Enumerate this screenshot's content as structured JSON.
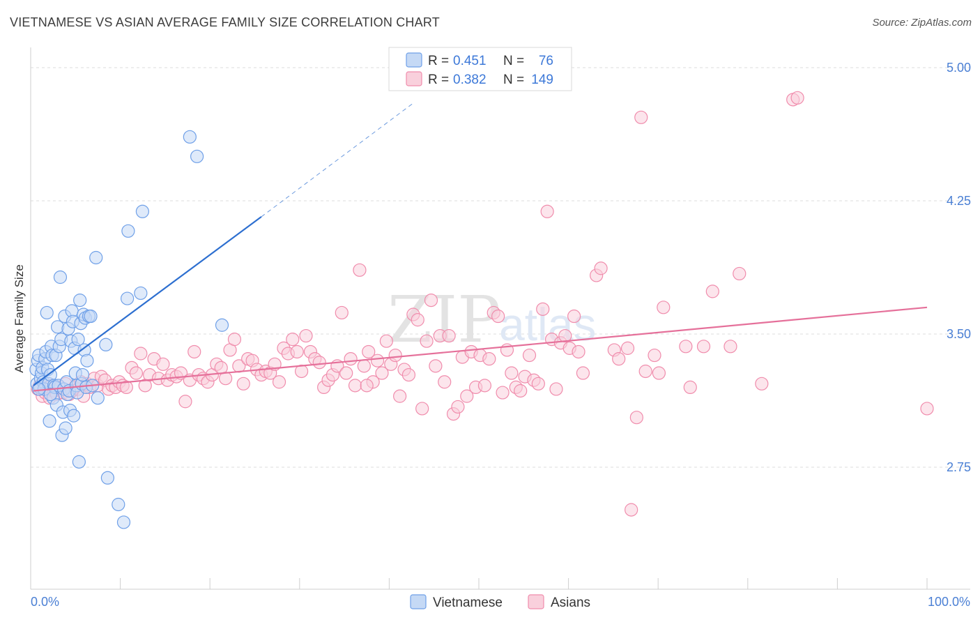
{
  "title": "VIETNAMESE VS ASIAN AVERAGE FAMILY SIZE CORRELATION CHART",
  "source": "Source: ZipAtlas.com",
  "watermark": {
    "zip": "ZIP",
    "atlas": "atlas"
  },
  "colors": {
    "vietnamese": "#6fa0e8",
    "vietnamese_fill": "#c5d9f5",
    "vietnamese_line": "#2d6fd0",
    "asians": "#f08cac",
    "asians_fill": "#f9d0dc",
    "asians_line": "#e5709a",
    "grid": "#dcdcdc",
    "tick_label": "#4a7fd4"
  },
  "legend": {
    "rows": [
      {
        "r_label": "R =",
        "r_value": "0.451",
        "n_label": "N =",
        "n_value": "76"
      },
      {
        "r_label": "R =",
        "r_value": "0.382",
        "n_label": "N =",
        "n_value": "149"
      }
    ]
  },
  "bottom_legend": {
    "vietnamese": "Vietnamese",
    "asians": "Asians"
  },
  "chart_data": {
    "type": "scatter",
    "title": "VIETNAMESE VS ASIAN AVERAGE FAMILY SIZE CORRELATION CHART",
    "xlabel": "",
    "ylabel": "Average Family Size",
    "xlim": [
      0,
      100
    ],
    "ylim": [
      2.0,
      5.1
    ],
    "x_tick_labels": [
      "0.0%",
      "100.0%"
    ],
    "y_ticks": [
      2.75,
      3.5,
      4.25,
      5.0
    ],
    "y_tick_labels": [
      "2.75",
      "3.50",
      "4.25",
      "5.00"
    ],
    "series": [
      {
        "name": "Vietnamese",
        "R": 0.451,
        "N": 76,
        "trend": {
          "x0": 0,
          "y0": 3.21,
          "x1": 25.5,
          "y1": 4.16,
          "dash_to_x": 42.5,
          "dash_to_y": 4.8
        },
        "points": [
          [
            0.3,
            3.3
          ],
          [
            0.4,
            3.22
          ],
          [
            0.5,
            3.35
          ],
          [
            0.6,
            3.38
          ],
          [
            0.7,
            3.2
          ],
          [
            0.8,
            3.25
          ],
          [
            0.9,
            3.28
          ],
          [
            1.0,
            3.31
          ],
          [
            1.1,
            3.23
          ],
          [
            1.2,
            3.19
          ],
          [
            1.3,
            3.36
          ],
          [
            1.4,
            3.4
          ],
          [
            1.5,
            3.62
          ],
          [
            1.6,
            3.3
          ],
          [
            1.7,
            3.22
          ],
          [
            1.8,
            3.01
          ],
          [
            1.9,
            3.27
          ],
          [
            2.0,
            3.43
          ],
          [
            2.1,
            3.38
          ],
          [
            2.2,
            3.14
          ],
          [
            2.3,
            3.21
          ],
          [
            2.4,
            3.2
          ],
          [
            2.5,
            3.38
          ],
          [
            2.6,
            3.1
          ],
          [
            2.7,
            3.54
          ],
          [
            2.8,
            3.21
          ],
          [
            2.9,
            3.43
          ],
          [
            3.0,
            3.82
          ],
          [
            3.1,
            3.47
          ],
          [
            3.2,
            2.93
          ],
          [
            3.3,
            3.06
          ],
          [
            3.4,
            3.19
          ],
          [
            3.5,
            3.6
          ],
          [
            3.6,
            2.97
          ],
          [
            3.7,
            3.23
          ],
          [
            3.8,
            3.16
          ],
          [
            3.9,
            3.53
          ],
          [
            4.0,
            3.18
          ],
          [
            4.1,
            3.07
          ],
          [
            4.2,
            3.46
          ],
          [
            4.3,
            3.63
          ],
          [
            4.4,
            3.57
          ],
          [
            4.5,
            3.04
          ],
          [
            4.6,
            3.42
          ],
          [
            4.7,
            3.28
          ],
          [
            4.8,
            3.21
          ],
          [
            4.9,
            3.17
          ],
          [
            5.0,
            3.47
          ],
          [
            5.1,
            2.78
          ],
          [
            5.2,
            3.69
          ],
          [
            5.3,
            3.56
          ],
          [
            5.4,
            3.22
          ],
          [
            5.5,
            3.27
          ],
          [
            5.6,
            3.61
          ],
          [
            5.7,
            3.41
          ],
          [
            5.8,
            3.59
          ],
          [
            5.9,
            3.2
          ],
          [
            6.0,
            3.35
          ],
          [
            6.2,
            3.6
          ],
          [
            6.4,
            3.6
          ],
          [
            6.6,
            3.21
          ],
          [
            7.0,
            3.93
          ],
          [
            7.2,
            3.14
          ],
          [
            8.1,
            3.44
          ],
          [
            8.3,
            2.69
          ],
          [
            9.5,
            2.54
          ],
          [
            10.1,
            2.44
          ],
          [
            10.5,
            3.7
          ],
          [
            10.6,
            4.08
          ],
          [
            12.0,
            3.73
          ],
          [
            12.2,
            4.19
          ],
          [
            17.5,
            4.61
          ],
          [
            18.3,
            4.5
          ],
          [
            21.1,
            3.55
          ],
          [
            0.6,
            3.19
          ],
          [
            1.9,
            3.16
          ]
        ]
      },
      {
        "name": "Asians",
        "R": 0.382,
        "N": 149,
        "trend": {
          "x0": 0,
          "y0": 3.18,
          "x1": 100,
          "y1": 3.65
        },
        "points": [
          [
            0.5,
            3.19
          ],
          [
            0.7,
            3.21
          ],
          [
            1.0,
            3.15
          ],
          [
            1.3,
            3.17
          ],
          [
            1.5,
            3.2
          ],
          [
            1.8,
            3.14
          ],
          [
            2.0,
            3.21
          ],
          [
            2.3,
            3.18
          ],
          [
            2.6,
            3.16
          ],
          [
            3.0,
            3.2
          ],
          [
            3.3,
            3.17
          ],
          [
            3.6,
            3.22
          ],
          [
            4.0,
            3.16
          ],
          [
            4.3,
            3.18
          ],
          [
            4.6,
            3.2
          ],
          [
            5.0,
            3.19
          ],
          [
            5.3,
            3.23
          ],
          [
            5.6,
            3.15
          ],
          [
            6.0,
            3.22
          ],
          [
            6.3,
            3.2
          ],
          [
            6.8,
            3.25
          ],
          [
            7.2,
            3.21
          ],
          [
            7.6,
            3.26
          ],
          [
            8.0,
            3.24
          ],
          [
            8.4,
            3.19
          ],
          [
            8.8,
            3.21
          ],
          [
            9.2,
            3.2
          ],
          [
            9.6,
            3.23
          ],
          [
            10.0,
            3.21
          ],
          [
            10.4,
            3.2
          ],
          [
            11.0,
            3.31
          ],
          [
            11.5,
            3.28
          ],
          [
            12.0,
            3.39
          ],
          [
            12.5,
            3.21
          ],
          [
            13.0,
            3.27
          ],
          [
            13.5,
            3.36
          ],
          [
            14.0,
            3.25
          ],
          [
            14.5,
            3.33
          ],
          [
            15.0,
            3.24
          ],
          [
            15.5,
            3.27
          ],
          [
            16.0,
            3.26
          ],
          [
            16.5,
            3.28
          ],
          [
            17.0,
            3.12
          ],
          [
            17.5,
            3.24
          ],
          [
            18.0,
            3.4
          ],
          [
            18.5,
            3.27
          ],
          [
            19.0,
            3.25
          ],
          [
            19.5,
            3.23
          ],
          [
            20.0,
            3.27
          ],
          [
            20.5,
            3.33
          ],
          [
            21.0,
            3.31
          ],
          [
            21.5,
            3.25
          ],
          [
            22.0,
            3.41
          ],
          [
            22.5,
            3.47
          ],
          [
            23.0,
            3.32
          ],
          [
            23.5,
            3.22
          ],
          [
            24.0,
            3.36
          ],
          [
            24.5,
            3.35
          ],
          [
            25.0,
            3.3
          ],
          [
            25.5,
            3.27
          ],
          [
            26.0,
            3.29
          ],
          [
            26.5,
            3.28
          ],
          [
            27.0,
            3.33
          ],
          [
            27.5,
            3.23
          ],
          [
            28.0,
            3.42
          ],
          [
            28.5,
            3.39
          ],
          [
            29.0,
            3.47
          ],
          [
            29.5,
            3.4
          ],
          [
            30.0,
            3.29
          ],
          [
            30.5,
            3.49
          ],
          [
            31.0,
            3.4
          ],
          [
            31.5,
            3.36
          ],
          [
            32.0,
            3.34
          ],
          [
            32.5,
            3.2
          ],
          [
            33.0,
            3.24
          ],
          [
            33.5,
            3.27
          ],
          [
            34.0,
            3.32
          ],
          [
            34.5,
            3.62
          ],
          [
            35.0,
            3.28
          ],
          [
            35.5,
            3.36
          ],
          [
            36.0,
            3.21
          ],
          [
            36.5,
            3.86
          ],
          [
            37.0,
            3.32
          ],
          [
            37.5,
            3.4
          ],
          [
            38.0,
            3.23
          ],
          [
            38.5,
            3.35
          ],
          [
            39.0,
            3.28
          ],
          [
            39.5,
            3.46
          ],
          [
            40.0,
            3.33
          ],
          [
            40.5,
            3.38
          ],
          [
            41.0,
            3.15
          ],
          [
            41.5,
            3.3
          ],
          [
            42.0,
            3.27
          ],
          [
            42.5,
            3.61
          ],
          [
            43.0,
            3.58
          ],
          [
            43.5,
            3.08
          ],
          [
            44.0,
            3.46
          ],
          [
            44.5,
            3.69
          ],
          [
            45.0,
            3.32
          ],
          [
            45.5,
            3.49
          ],
          [
            46.0,
            3.23
          ],
          [
            46.5,
            3.49
          ],
          [
            47.0,
            3.05
          ],
          [
            47.5,
            3.09
          ],
          [
            48.0,
            3.37
          ],
          [
            48.5,
            3.15
          ],
          [
            49.0,
            3.4
          ],
          [
            49.5,
            3.2
          ],
          [
            50.0,
            3.38
          ],
          [
            50.5,
            3.21
          ],
          [
            51.0,
            3.36
          ],
          [
            51.5,
            3.62
          ],
          [
            52.0,
            3.6
          ],
          [
            52.5,
            3.17
          ],
          [
            53.0,
            3.41
          ],
          [
            53.5,
            3.28
          ],
          [
            54.0,
            3.2
          ],
          [
            54.5,
            3.18
          ],
          [
            55.0,
            3.26
          ],
          [
            55.5,
            3.38
          ],
          [
            56.0,
            3.24
          ],
          [
            56.5,
            3.22
          ],
          [
            57.0,
            3.64
          ],
          [
            57.5,
            4.19
          ],
          [
            58.0,
            3.47
          ],
          [
            58.5,
            3.19
          ],
          [
            59.0,
            3.45
          ],
          [
            59.5,
            3.49
          ],
          [
            60.0,
            3.42
          ],
          [
            60.5,
            3.6
          ],
          [
            61.0,
            3.4
          ],
          [
            61.5,
            3.28
          ],
          [
            63.0,
            3.83
          ],
          [
            63.5,
            3.87
          ],
          [
            65.0,
            3.41
          ],
          [
            65.5,
            3.36
          ],
          [
            66.5,
            3.42
          ],
          [
            67.5,
            3.03
          ],
          [
            68.0,
            4.72
          ],
          [
            68.5,
            3.29
          ],
          [
            69.5,
            3.38
          ],
          [
            70.0,
            3.28
          ],
          [
            70.5,
            3.65
          ],
          [
            73.0,
            3.43
          ],
          [
            73.5,
            3.2
          ],
          [
            75.0,
            3.43
          ],
          [
            76.0,
            3.74
          ],
          [
            78.0,
            3.43
          ],
          [
            79.0,
            3.84
          ],
          [
            81.5,
            3.22
          ],
          [
            85.0,
            4.82
          ],
          [
            85.5,
            4.83
          ],
          [
            100.0,
            3.08
          ],
          [
            66.9,
            2.51
          ],
          [
            37.3,
            3.21
          ]
        ]
      }
    ]
  }
}
